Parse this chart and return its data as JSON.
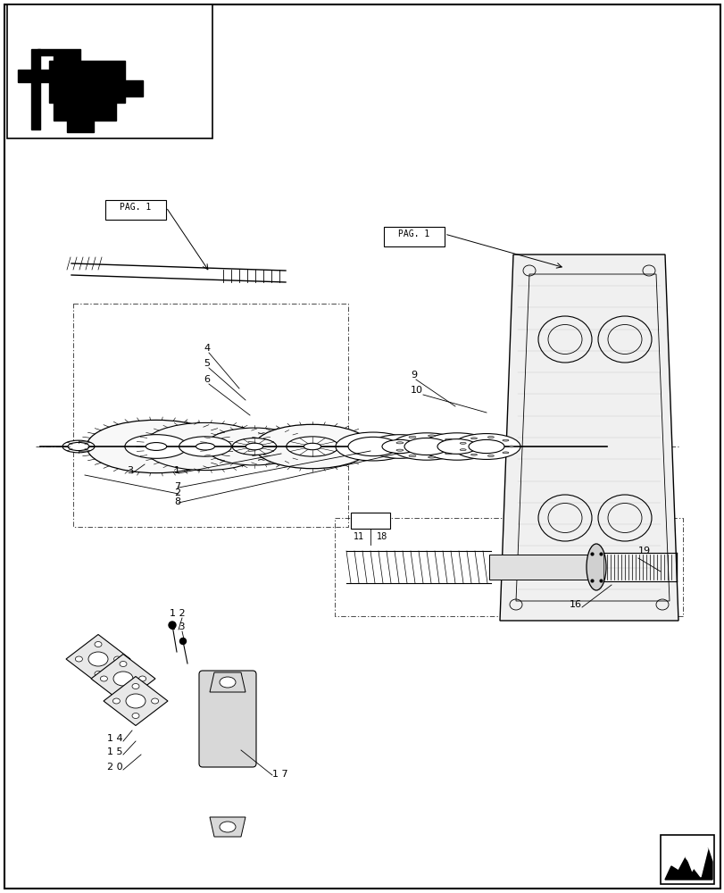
{
  "bg_color": "#ffffff",
  "fig_width": 8.12,
  "fig_height": 10.0,
  "dpi": 100
}
